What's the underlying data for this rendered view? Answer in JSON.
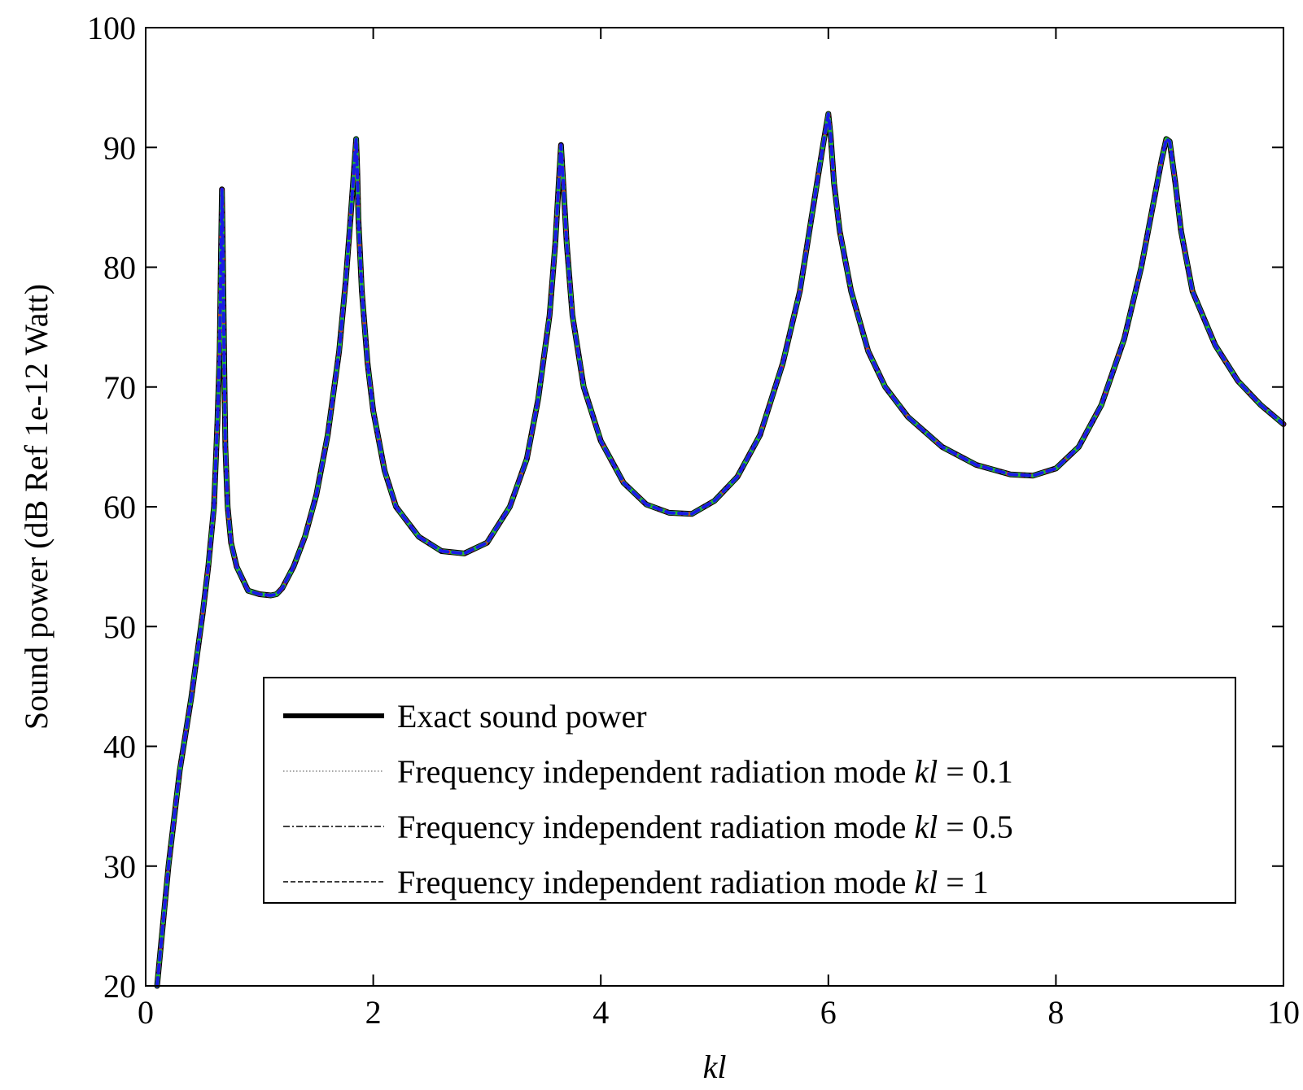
{
  "chart_data": {
    "type": "line",
    "title": "",
    "xlabel": "kl",
    "ylabel": "Sound power (dB Ref 1e-12 Watt)",
    "xlim": [
      0,
      10
    ],
    "ylim": [
      20,
      100
    ],
    "xticks": [
      0,
      2,
      4,
      6,
      8,
      10
    ],
    "yticks": [
      20,
      30,
      40,
      50,
      60,
      70,
      80,
      90,
      100
    ],
    "grid": false,
    "legend_position": "bottom-right",
    "curve_points": {
      "x": [
        0.1,
        0.2,
        0.3,
        0.4,
        0.5,
        0.55,
        0.6,
        0.63,
        0.65,
        0.66,
        0.67,
        0.68,
        0.69,
        0.7,
        0.72,
        0.75,
        0.8,
        0.9,
        1.0,
        1.1,
        1.15,
        1.2,
        1.3,
        1.4,
        1.5,
        1.6,
        1.7,
        1.76,
        1.8,
        1.83,
        1.85,
        1.86,
        1.87,
        1.9,
        1.95,
        2.0,
        2.1,
        2.2,
        2.4,
        2.6,
        2.8,
        3.0,
        3.2,
        3.35,
        3.45,
        3.55,
        3.6,
        3.63,
        3.65,
        3.67,
        3.7,
        3.75,
        3.85,
        4.0,
        4.2,
        4.4,
        4.6,
        4.8,
        5.0,
        5.2,
        5.4,
        5.6,
        5.75,
        5.85,
        5.95,
        6.0,
        6.02,
        6.05,
        6.1,
        6.2,
        6.35,
        6.5,
        6.7,
        7.0,
        7.3,
        7.6,
        7.8,
        8.0,
        8.2,
        8.4,
        8.6,
        8.75,
        8.85,
        8.93,
        8.97,
        9.0,
        9.05,
        9.1,
        9.2,
        9.4,
        9.6,
        9.8,
        10.0
      ],
      "y": [
        20,
        30,
        38,
        44,
        51,
        55,
        60,
        67,
        73,
        80,
        86.5,
        80,
        72,
        65,
        60,
        57,
        55,
        53,
        52.7,
        52.6,
        52.7,
        53.2,
        55,
        57.5,
        61,
        66,
        73,
        79,
        84,
        88,
        90.7,
        88,
        84,
        78,
        72,
        68,
        63,
        60,
        57.5,
        56.3,
        56.1,
        57,
        60,
        64,
        69,
        76,
        82,
        87,
        90.2,
        87,
        82,
        76,
        70,
        65.5,
        62,
        60.2,
        59.5,
        59.4,
        60.5,
        62.5,
        66,
        72,
        78,
        84,
        90,
        92.8,
        91,
        87,
        83,
        78,
        73,
        70,
        67.5,
        65,
        63.5,
        62.7,
        62.6,
        63.2,
        65,
        68.5,
        74,
        80,
        85,
        89,
        90.7,
        90.5,
        87,
        83,
        78,
        73.5,
        70.5,
        68.5,
        66.9
      ]
    },
    "series": [
      {
        "name": "Exact sound power",
        "style": "solid",
        "color": "#000000"
      },
      {
        "name": "Frequency independent radiation mode kl = 0.1",
        "style": "dotted",
        "color": "#d03030"
      },
      {
        "name": "Frequency independent radiation mode kl = 0.5",
        "style": "dashdot",
        "color": "#22bb33"
      },
      {
        "name": "Frequency independent radiation mode kl = 1",
        "style": "dashed",
        "color": "#1a1ae6"
      }
    ],
    "legend": {
      "entries": [
        {
          "prefix": "Exact sound power",
          "kl": "",
          "suffix": ""
        },
        {
          "prefix": "Frequency independent radiation mode ",
          "kl": "kl",
          "suffix": " = 0.1"
        },
        {
          "prefix": "Frequency independent radiation mode ",
          "kl": "kl",
          "suffix": " = 0.5"
        },
        {
          "prefix": "Frequency independent radiation mode ",
          "kl": "kl",
          "suffix": " = 1"
        }
      ]
    }
  }
}
